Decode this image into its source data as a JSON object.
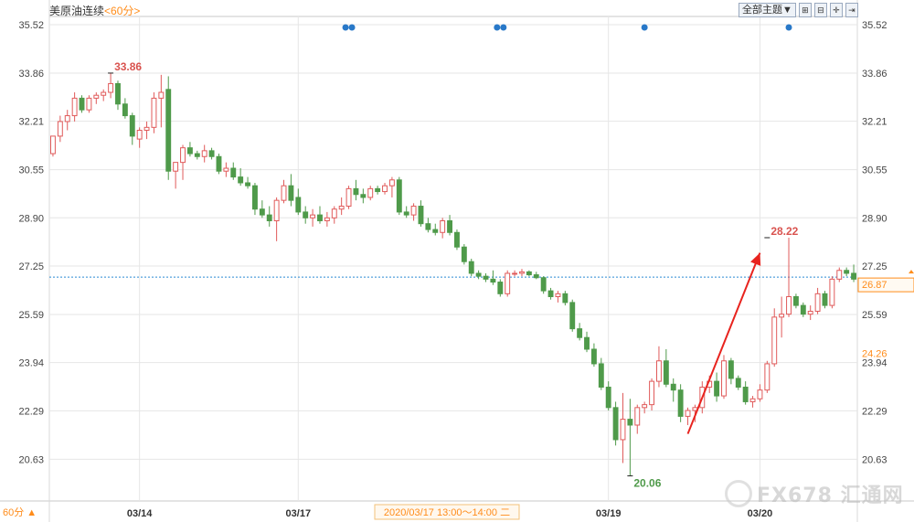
{
  "header": {
    "instrument": "美原油连续",
    "period": "<60分>"
  },
  "toolbar": {
    "topic_label": "全部主题▼",
    "icons": [
      "zoom-in-icon",
      "zoom-out-icon",
      "crosshair-icon",
      "expand-icon"
    ]
  },
  "period_selector": {
    "label": "60分 ▲"
  },
  "watermark": {
    "text": "FX678 汇通网"
  },
  "colors": {
    "up": "#e05a5a",
    "down": "#4f9a4a",
    "grid": "#e6e6e6",
    "price_line": "#2a8ad4",
    "arrow": "#e8231e",
    "current": "#ff8c1a",
    "event_dot": "#2878c8"
  },
  "chart_data": {
    "type": "candlestick",
    "title": "",
    "y_axis_ticks": [
      "35.52",
      "33.86",
      "32.21",
      "30.55",
      "28.90",
      "27.25",
      "25.59",
      "23.94",
      "22.29",
      "20.63"
    ],
    "ylim": [
      19.2,
      35.8
    ],
    "x_labels": [
      {
        "label": "03/14",
        "index": 12
      },
      {
        "label": "03/17",
        "index": 34
      },
      {
        "label": "03/19",
        "index": 77
      },
      {
        "label": "03/20",
        "index": 98
      }
    ],
    "crosshair_time": "2020/03/17 13:00～14:00 二",
    "current_price": "26.87",
    "current_price_value": 26.87,
    "right_marker": {
      "label": "24.26",
      "value": 24.26
    },
    "annotations": [
      {
        "label": "33.86",
        "index": 8,
        "value": 33.86,
        "kind": "high"
      },
      {
        "label": "28.22",
        "index": 99,
        "value": 28.22,
        "kind": "high"
      },
      {
        "label": "20.06",
        "index": 80,
        "value": 20.06,
        "kind": "low"
      }
    ],
    "arrow": {
      "from_index": 88,
      "from_value": 21.5,
      "to_index": 98,
      "to_value": 27.7
    },
    "event_markers": [
      {
        "index": 41,
        "count": 2
      },
      {
        "index": 62,
        "count": 2
      },
      {
        "index": 82,
        "count": 1
      },
      {
        "index": 102,
        "count": 1
      }
    ],
    "candles": [
      [
        31.1,
        31.7,
        31.0,
        31.7
      ],
      [
        31.7,
        32.4,
        31.5,
        32.2
      ],
      [
        32.2,
        32.6,
        31.9,
        32.4
      ],
      [
        32.4,
        33.2,
        32.2,
        33.0
      ],
      [
        33.0,
        33.1,
        32.5,
        32.6
      ],
      [
        32.6,
        33.1,
        32.5,
        33.0
      ],
      [
        33.0,
        33.2,
        32.8,
        33.1
      ],
      [
        33.1,
        33.3,
        32.9,
        33.2
      ],
      [
        33.2,
        33.86,
        33.0,
        33.5
      ],
      [
        33.5,
        33.6,
        32.6,
        32.8
      ],
      [
        32.8,
        33.0,
        32.3,
        32.4
      ],
      [
        32.4,
        32.5,
        31.4,
        31.7
      ],
      [
        31.6,
        32.0,
        31.3,
        31.9
      ],
      [
        31.9,
        32.2,
        31.6,
        32.0
      ],
      [
        32.0,
        33.2,
        31.8,
        33.0
      ],
      [
        33.0,
        33.8,
        32.0,
        33.2
      ],
      [
        33.3,
        33.75,
        30.2,
        30.5
      ],
      [
        30.5,
        30.8,
        29.9,
        30.8
      ],
      [
        30.8,
        31.4,
        30.2,
        31.3
      ],
      [
        31.3,
        31.5,
        31.0,
        31.1
      ],
      [
        31.1,
        31.2,
        30.9,
        31.0
      ],
      [
        31.0,
        31.4,
        30.8,
        31.2
      ],
      [
        31.2,
        31.3,
        30.9,
        31.0
      ],
      [
        31.0,
        31.1,
        30.4,
        30.5
      ],
      [
        30.5,
        30.8,
        30.3,
        30.6
      ],
      [
        30.6,
        30.8,
        30.2,
        30.3
      ],
      [
        30.3,
        30.6,
        30.0,
        30.1
      ],
      [
        30.1,
        30.3,
        29.9,
        30.0
      ],
      [
        30.0,
        30.1,
        29.0,
        29.2
      ],
      [
        29.2,
        29.5,
        28.9,
        29.0
      ],
      [
        29.0,
        29.3,
        28.6,
        28.8
      ],
      [
        28.8,
        29.6,
        28.1,
        29.5
      ],
      [
        29.5,
        30.2,
        29.4,
        30.0
      ],
      [
        30.0,
        30.4,
        29.3,
        29.5
      ],
      [
        29.6,
        29.9,
        29.0,
        29.1
      ],
      [
        29.1,
        29.3,
        28.7,
        28.9
      ],
      [
        28.9,
        29.2,
        28.6,
        29.0
      ],
      [
        29.0,
        29.3,
        28.7,
        28.8
      ],
      [
        28.8,
        29.1,
        28.6,
        28.9
      ],
      [
        28.9,
        29.3,
        28.7,
        29.2
      ],
      [
        29.2,
        29.6,
        29.0,
        29.3
      ],
      [
        29.3,
        30.0,
        29.2,
        29.9
      ],
      [
        29.9,
        30.2,
        29.5,
        29.7
      ],
      [
        29.7,
        29.9,
        29.4,
        29.6
      ],
      [
        29.6,
        30.0,
        29.5,
        29.9
      ],
      [
        29.9,
        30.0,
        29.7,
        29.8
      ],
      [
        29.8,
        30.1,
        29.7,
        30.0
      ],
      [
        30.0,
        30.3,
        29.6,
        30.2
      ],
      [
        30.2,
        30.3,
        29.0,
        29.1
      ],
      [
        29.1,
        29.3,
        28.9,
        29.0
      ],
      [
        29.0,
        29.4,
        28.8,
        29.3
      ],
      [
        29.3,
        29.5,
        28.6,
        28.7
      ],
      [
        28.7,
        28.9,
        28.4,
        28.5
      ],
      [
        28.5,
        28.7,
        28.3,
        28.4
      ],
      [
        28.4,
        28.9,
        28.2,
        28.8
      ],
      [
        28.8,
        29.0,
        28.3,
        28.4
      ],
      [
        28.4,
        28.5,
        27.8,
        27.9
      ],
      [
        27.9,
        28.0,
        27.3,
        27.4
      ],
      [
        27.4,
        27.5,
        26.9,
        27.0
      ],
      [
        27.0,
        27.1,
        26.8,
        26.9
      ],
      [
        26.9,
        27.0,
        26.7,
        26.8
      ],
      [
        26.8,
        27.1,
        26.6,
        26.7
      ],
      [
        26.7,
        26.8,
        26.2,
        26.3
      ],
      [
        26.3,
        27.1,
        26.2,
        27.0
      ],
      [
        27.0,
        27.1,
        26.9,
        27.0
      ],
      [
        27.0,
        27.15,
        26.9,
        27.05
      ],
      [
        27.05,
        27.1,
        26.9,
        26.95
      ],
      [
        26.95,
        27.05,
        26.8,
        26.85
      ],
      [
        26.85,
        26.9,
        26.3,
        26.4
      ],
      [
        26.4,
        26.5,
        26.1,
        26.2
      ],
      [
        26.2,
        26.4,
        26.0,
        26.3
      ],
      [
        26.3,
        26.4,
        25.9,
        26.0
      ],
      [
        26.0,
        26.1,
        25.0,
        25.1
      ],
      [
        25.1,
        25.3,
        24.7,
        24.8
      ],
      [
        24.8,
        25.0,
        24.3,
        24.4
      ],
      [
        24.4,
        24.6,
        23.8,
        23.9
      ],
      [
        23.9,
        24.1,
        23.0,
        23.1
      ],
      [
        23.1,
        23.3,
        22.3,
        22.4
      ],
      [
        22.4,
        22.6,
        21.1,
        21.3
      ],
      [
        21.3,
        22.9,
        20.5,
        22.0
      ],
      [
        22.0,
        22.7,
        20.06,
        21.8
      ],
      [
        21.8,
        22.5,
        21.5,
        22.4
      ],
      [
        22.4,
        22.6,
        22.2,
        22.5
      ],
      [
        22.5,
        23.4,
        22.3,
        23.3
      ],
      [
        23.3,
        24.5,
        23.1,
        24.0
      ],
      [
        24.0,
        24.4,
        23.1,
        23.2
      ],
      [
        23.2,
        23.4,
        22.6,
        23.0
      ],
      [
        23.0,
        23.2,
        21.9,
        22.1
      ],
      [
        22.1,
        22.4,
        21.8,
        22.3
      ],
      [
        22.3,
        22.5,
        21.9,
        22.4
      ],
      [
        22.4,
        23.3,
        22.2,
        23.1
      ],
      [
        23.1,
        23.5,
        22.9,
        23.3
      ],
      [
        23.3,
        23.6,
        22.6,
        22.8
      ],
      [
        22.8,
        24.2,
        22.7,
        24.0
      ],
      [
        24.0,
        24.1,
        23.2,
        23.4
      ],
      [
        23.4,
        23.5,
        23.0,
        23.1
      ],
      [
        23.1,
        23.3,
        22.5,
        22.6
      ],
      [
        22.6,
        22.8,
        22.4,
        22.7
      ],
      [
        22.7,
        23.2,
        22.6,
        23.0
      ],
      [
        23.0,
        24.0,
        22.9,
        23.9
      ],
      [
        23.9,
        25.8,
        23.8,
        25.5
      ],
      [
        25.5,
        26.2,
        24.8,
        25.6
      ],
      [
        25.6,
        28.22,
        25.5,
        26.2
      ],
      [
        26.2,
        26.3,
        25.8,
        25.9
      ],
      [
        25.9,
        26.0,
        25.5,
        25.6
      ],
      [
        25.6,
        25.9,
        25.4,
        25.7
      ],
      [
        25.7,
        26.5,
        25.6,
        26.3
      ],
      [
        26.3,
        26.4,
        25.8,
        25.9
      ],
      [
        25.9,
        26.9,
        25.8,
        26.8
      ],
      [
        26.8,
        27.2,
        26.7,
        27.1
      ],
      [
        27.1,
        27.2,
        26.9,
        27.0
      ],
      [
        27.0,
        27.3,
        26.7,
        26.8
      ]
    ]
  }
}
